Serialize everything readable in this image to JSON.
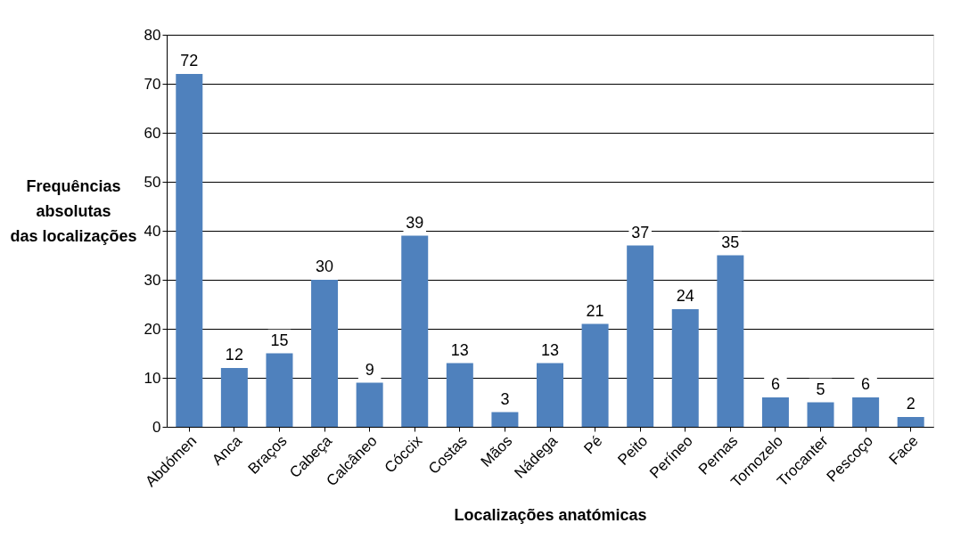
{
  "chart_data": {
    "type": "bar",
    "xlabel": "Localizações anatómicas",
    "ylabel": "Frequências\nabsolutas\ndas localizações",
    "categories": [
      "Abdómen",
      "Anca",
      "Braços",
      "Cabeça",
      "Calcâneo",
      "Cóccix",
      "Costas",
      "Mãos",
      "Nádega",
      "Pé",
      "Peito",
      "Períneo",
      "Pernas",
      "Tornozelo",
      "Trocanter",
      "Pescoço",
      "Face"
    ],
    "values": [
      72,
      12,
      15,
      30,
      9,
      39,
      13,
      3,
      13,
      21,
      37,
      24,
      35,
      6,
      5,
      6,
      2
    ],
    "color": "#4f81bd",
    "ylim": [
      0,
      80
    ],
    "yticks": [
      0,
      10,
      20,
      30,
      40,
      50,
      60,
      70,
      80
    ],
    "grid": "y",
    "data_labels": true,
    "legend": false
  }
}
